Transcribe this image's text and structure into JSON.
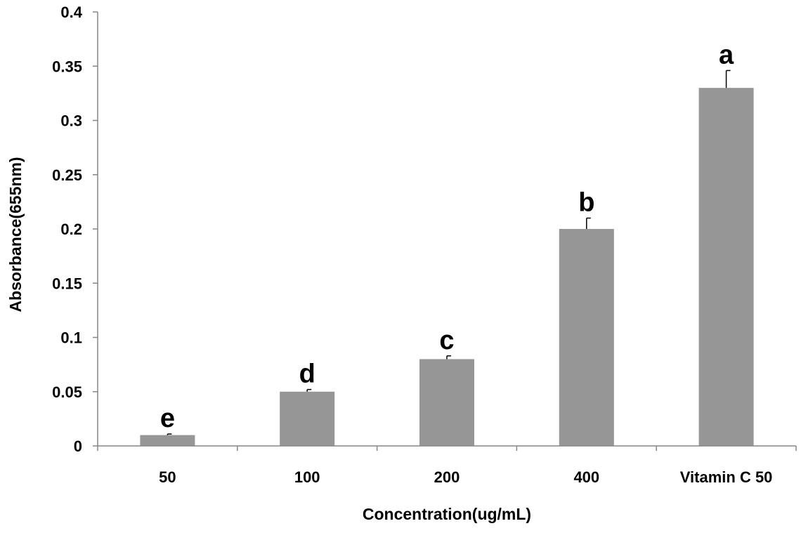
{
  "chart_data": {
    "type": "bar",
    "title": "",
    "xlabel": "Concentration(ug/mL)",
    "ylabel": "Absorbance(655nm)",
    "ylim": [
      0,
      0.4
    ],
    "yticks": [
      0,
      0.05,
      0.1,
      0.15,
      0.2,
      0.25,
      0.3,
      0.35,
      0.4
    ],
    "ytick_labels": [
      "0",
      "0.05",
      "0.1",
      "0.15",
      "0.2",
      "0.25",
      "0.3",
      "0.35",
      "0.4"
    ],
    "categories": [
      "50",
      "100",
      "200",
      "400",
      "Vitamin C 50"
    ],
    "values": [
      0.01,
      0.05,
      0.08,
      0.2,
      0.33
    ],
    "errors": [
      0.001,
      0.002,
      0.003,
      0.01,
      0.016
    ],
    "significance_letters": [
      "e",
      "d",
      "c",
      "b",
      "a"
    ],
    "bar_color": "#969696",
    "axis_color": "#868686",
    "grid": false,
    "legend": "none"
  }
}
